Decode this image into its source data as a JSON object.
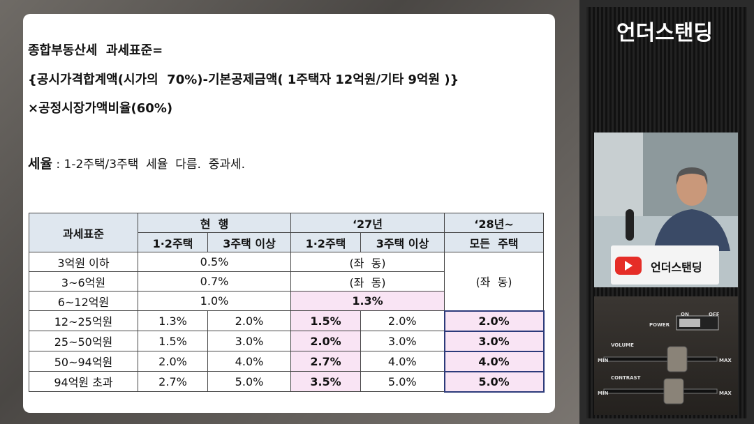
{
  "text": {
    "line1": "종합부동산세  과세표준=",
    "line2": "{공시가격합계액(시가의  70%)-기본공제금액( 1주택자 12억원/기타 9억원 )}",
    "line3": "×공정시장가액비율(60%)",
    "rate_label": "세율",
    "rate_text": " : 1-2주택/3주택  세율  다름.  중과세."
  },
  "table": {
    "header": [
      [
        "과세표준",
        "현  행",
        "‘27년",
        "‘28년~"
      ],
      [
        "1·2주택",
        "3주택 이상",
        "1·2주택",
        "3주택 이상",
        "모든  주택"
      ]
    ],
    "rows": [
      [
        "3억원 이하",
        "0.5%",
        "(좌  동)",
        "(좌  동)"
      ],
      [
        "3~6억원",
        "0.7%",
        "(좌  동)"
      ],
      [
        "6~12억원",
        "1.0%",
        "1.3%"
      ],
      [
        "12~25억원",
        "1.3%",
        "2.0%",
        "1.5%",
        "2.0%",
        "2.0%"
      ],
      [
        "25~50억원",
        "1.5%",
        "3.0%",
        "2.0%",
        "3.0%",
        "3.0%"
      ],
      [
        "50~94억원",
        "2.0%",
        "4.0%",
        "2.7%",
        "4.0%",
        "4.0%"
      ],
      [
        "94억원 초과",
        "2.7%",
        "5.0%",
        "3.5%",
        "5.0%",
        "5.0%"
      ]
    ]
  },
  "channel": {
    "title": "언더스탠딩",
    "badge": "언더스탠딩"
  },
  "device": {
    "power": "POWER",
    "on": "ON",
    "off": "OFF",
    "volume": "VOLUME",
    "volume_min": "MIN",
    "volume_max": "MAX",
    "contrast": "CONTRAST",
    "contrast_min": "MIN",
    "contrast_max": "MAX"
  }
}
